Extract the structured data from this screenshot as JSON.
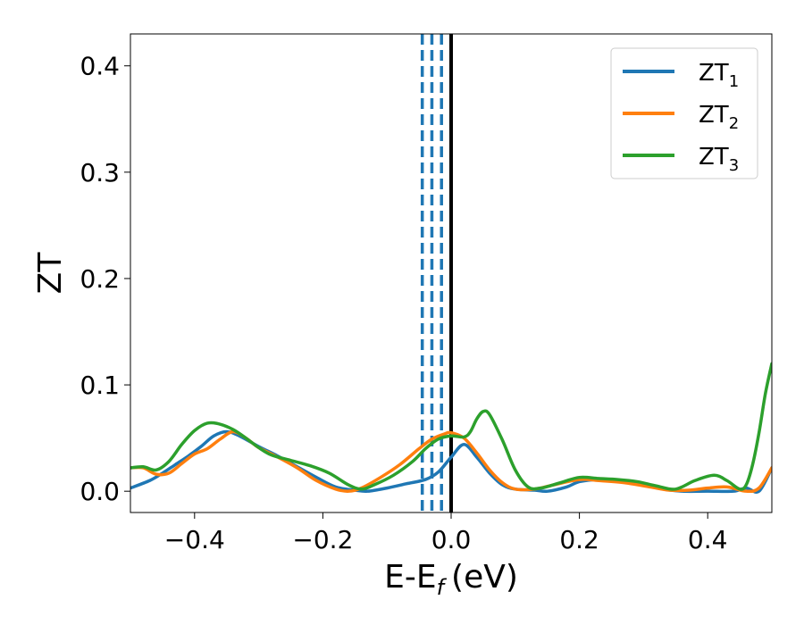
{
  "chart_data": {
    "type": "line",
    "xlabel": "E-E",
    "xlabel_sub": "f",
    "xlabel_unit": "(eV)",
    "ylabel": "ZT",
    "xlim": [
      -0.5,
      0.5
    ],
    "ylim": [
      -0.02,
      0.43
    ],
    "xticks": [
      -0.4,
      -0.2,
      0.0,
      0.2,
      0.4
    ],
    "xtick_labels": [
      "−0.4",
      "−0.2",
      "0.0",
      "0.2",
      "0.4"
    ],
    "yticks": [
      0.0,
      0.1,
      0.2,
      0.3,
      0.4
    ],
    "ytick_labels": [
      "0.0",
      "0.1",
      "0.2",
      "0.3",
      "0.4"
    ],
    "grid": false,
    "legend_position": "top-right",
    "vlines": [
      {
        "x": -0.045,
        "style": "dashed",
        "color": "#1f77b4"
      },
      {
        "x": -0.03,
        "style": "dashed",
        "color": "#1f77b4"
      },
      {
        "x": -0.015,
        "style": "dashed",
        "color": "#1f77b4"
      },
      {
        "x": 0.0,
        "style": "solid",
        "color": "#000000"
      }
    ],
    "series": [
      {
        "name": "ZT",
        "name_sub": "1",
        "color": "#1f77b4",
        "points": [
          [
            -0.5,
            0.003
          ],
          [
            -0.47,
            0.01
          ],
          [
            -0.45,
            0.017
          ],
          [
            -0.43,
            0.025
          ],
          [
            -0.41,
            0.033
          ],
          [
            -0.39,
            0.042
          ],
          [
            -0.37,
            0.052
          ],
          [
            -0.35,
            0.056
          ],
          [
            -0.33,
            0.052
          ],
          [
            -0.3,
            0.042
          ],
          [
            -0.27,
            0.033
          ],
          [
            -0.24,
            0.023
          ],
          [
            -0.21,
            0.013
          ],
          [
            -0.18,
            0.004
          ],
          [
            -0.15,
            0.001
          ],
          [
            -0.13,
            0.0
          ],
          [
            -0.1,
            0.003
          ],
          [
            -0.07,
            0.007
          ],
          [
            -0.04,
            0.011
          ],
          [
            -0.02,
            0.018
          ],
          [
            0.0,
            0.032
          ],
          [
            0.02,
            0.044
          ],
          [
            0.04,
            0.032
          ],
          [
            0.06,
            0.017
          ],
          [
            0.08,
            0.006
          ],
          [
            0.1,
            0.002
          ],
          [
            0.13,
            0.001
          ],
          [
            0.15,
            0.0
          ],
          [
            0.18,
            0.004
          ],
          [
            0.2,
            0.009
          ],
          [
            0.23,
            0.011
          ],
          [
            0.26,
            0.01
          ],
          [
            0.3,
            0.006
          ],
          [
            0.33,
            0.002
          ],
          [
            0.36,
            0.0
          ],
          [
            0.4,
            0.0
          ],
          [
            0.44,
            0.0
          ],
          [
            0.46,
            0.003
          ],
          [
            0.48,
            0.0
          ],
          [
            0.5,
            0.022
          ]
        ]
      },
      {
        "name": "ZT",
        "name_sub": "2",
        "color": "#ff7f0e",
        "points": [
          [
            -0.5,
            0.022
          ],
          [
            -0.48,
            0.022
          ],
          [
            -0.46,
            0.016
          ],
          [
            -0.44,
            0.017
          ],
          [
            -0.42,
            0.026
          ],
          [
            -0.4,
            0.035
          ],
          [
            -0.38,
            0.04
          ],
          [
            -0.36,
            0.049
          ],
          [
            -0.34,
            0.056
          ],
          [
            -0.32,
            0.05
          ],
          [
            -0.3,
            0.041
          ],
          [
            -0.27,
            0.032
          ],
          [
            -0.24,
            0.022
          ],
          [
            -0.21,
            0.01
          ],
          [
            -0.18,
            0.002
          ],
          [
            -0.16,
            0.0
          ],
          [
            -0.14,
            0.003
          ],
          [
            -0.11,
            0.013
          ],
          [
            -0.08,
            0.025
          ],
          [
            -0.05,
            0.04
          ],
          [
            -0.03,
            0.049
          ],
          [
            -0.01,
            0.054
          ],
          [
            0.0,
            0.055
          ],
          [
            0.02,
            0.05
          ],
          [
            0.04,
            0.036
          ],
          [
            0.06,
            0.02
          ],
          [
            0.08,
            0.008
          ],
          [
            0.1,
            0.002
          ],
          [
            0.13,
            0.002
          ],
          [
            0.16,
            0.006
          ],
          [
            0.2,
            0.011
          ],
          [
            0.23,
            0.01
          ],
          [
            0.27,
            0.008
          ],
          [
            0.31,
            0.004
          ],
          [
            0.34,
            0.001
          ],
          [
            0.37,
            0.001
          ],
          [
            0.4,
            0.003
          ],
          [
            0.43,
            0.004
          ],
          [
            0.46,
            0.0
          ],
          [
            0.48,
            0.003
          ],
          [
            0.5,
            0.022
          ]
        ]
      },
      {
        "name": "ZT",
        "name_sub": "3",
        "color": "#2ca02c",
        "points": [
          [
            -0.5,
            0.022
          ],
          [
            -0.48,
            0.023
          ],
          [
            -0.46,
            0.02
          ],
          [
            -0.44,
            0.028
          ],
          [
            -0.42,
            0.044
          ],
          [
            -0.4,
            0.057
          ],
          [
            -0.38,
            0.064
          ],
          [
            -0.36,
            0.063
          ],
          [
            -0.34,
            0.058
          ],
          [
            -0.32,
            0.05
          ],
          [
            -0.3,
            0.041
          ],
          [
            -0.28,
            0.034
          ],
          [
            -0.25,
            0.029
          ],
          [
            -0.22,
            0.024
          ],
          [
            -0.19,
            0.017
          ],
          [
            -0.16,
            0.006
          ],
          [
            -0.14,
            0.002
          ],
          [
            -0.12,
            0.006
          ],
          [
            -0.09,
            0.015
          ],
          [
            -0.06,
            0.028
          ],
          [
            -0.04,
            0.04
          ],
          [
            -0.02,
            0.049
          ],
          [
            0.0,
            0.052
          ],
          [
            0.02,
            0.051
          ],
          [
            0.03,
            0.056
          ],
          [
            0.04,
            0.068
          ],
          [
            0.05,
            0.075
          ],
          [
            0.06,
            0.072
          ],
          [
            0.08,
            0.048
          ],
          [
            0.1,
            0.02
          ],
          [
            0.12,
            0.004
          ],
          [
            0.14,
            0.003
          ],
          [
            0.17,
            0.008
          ],
          [
            0.2,
            0.013
          ],
          [
            0.23,
            0.012
          ],
          [
            0.26,
            0.011
          ],
          [
            0.29,
            0.009
          ],
          [
            0.32,
            0.005
          ],
          [
            0.35,
            0.002
          ],
          [
            0.38,
            0.01
          ],
          [
            0.41,
            0.015
          ],
          [
            0.43,
            0.01
          ],
          [
            0.45,
            0.002
          ],
          [
            0.46,
            0.006
          ],
          [
            0.47,
            0.025
          ],
          [
            0.48,
            0.055
          ],
          [
            0.49,
            0.092
          ],
          [
            0.5,
            0.12
          ]
        ]
      }
    ]
  }
}
